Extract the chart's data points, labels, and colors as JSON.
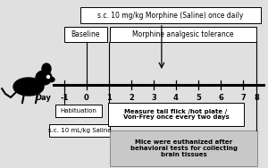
{
  "bg_color": "#e0e0e0",
  "white": "#ffffff",
  "black": "#000000",
  "gray": "#c8c8c8",
  "top_box_text": "s.c. 10 mg/kg Morphine (Saline) once daily",
  "baseline_text": "Baseline",
  "tolerance_text": "Morphine analgesic tolerance",
  "habituation_text": "Habituation",
  "saline_text": "s.c. 10 mL/kg Saline",
  "measure_text": "Measure tail flick /hot plate /\nVon-Frey once every two days",
  "euthanized_text": "Mice were euthanized after\nbehavioral tests for collecting\nbrain tissues",
  "day_label": "Day",
  "day_values": [
    -1,
    0,
    1,
    2,
    3,
    4,
    5,
    6,
    7,
    8
  ]
}
